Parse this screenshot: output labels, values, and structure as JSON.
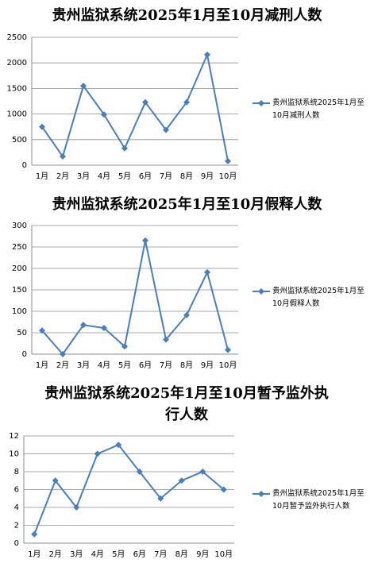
{
  "chart_data": [
    {
      "type": "line",
      "title": "贵州监狱系统2025年1月至10月减刑人数",
      "categories": [
        "1月",
        "2月",
        "3月",
        "4月",
        "5月",
        "6月",
        "7月",
        "8月",
        "9月",
        "10月"
      ],
      "series": [
        {
          "name": "贵州监狱系统2025年1月至10月减刑人数",
          "color": "#4a7ebb",
          "values": [
            750,
            170,
            1550,
            990,
            330,
            1230,
            690,
            1230,
            2160,
            80
          ]
        }
      ],
      "ylim": [
        0,
        2500
      ],
      "yticks": [
        0,
        500,
        1000,
        1500,
        2000,
        2500
      ],
      "grid": true,
      "legend": "right"
    },
    {
      "type": "line",
      "title": "贵州监狱系统2025年1月至10月假释人数",
      "categories": [
        "1月",
        "2月",
        "3月",
        "4月",
        "5月",
        "6月",
        "7月",
        "8月",
        "9月",
        "10月"
      ],
      "series": [
        {
          "name": "贵州监狱系统2025年1月至10月假释人数",
          "color": "#4a7ebb",
          "values": [
            55,
            0,
            68,
            61,
            18,
            265,
            34,
            91,
            191,
            10
          ]
        }
      ],
      "ylim": [
        0,
        300
      ],
      "yticks": [
        0,
        50,
        100,
        150,
        200,
        250,
        300
      ],
      "grid": true,
      "legend": "right"
    },
    {
      "type": "line",
      "title": "贵州监狱系统2025年1月至10月暂予监外执行人数",
      "categories": [
        "1月",
        "2月",
        "3月",
        "4月",
        "5月",
        "6月",
        "7月",
        "8月",
        "9月",
        "10月"
      ],
      "series": [
        {
          "name": "贵州监狱系统2025年1月至10月暂予监外执行人数",
          "color": "#4a7ebb",
          "values": [
            1,
            7,
            4,
            10,
            11,
            8,
            5,
            7,
            8,
            6
          ]
        }
      ],
      "ylim": [
        0,
        12
      ],
      "yticks": [
        0,
        2,
        4,
        6,
        8,
        10,
        12
      ],
      "grid": true,
      "legend": "right"
    }
  ]
}
